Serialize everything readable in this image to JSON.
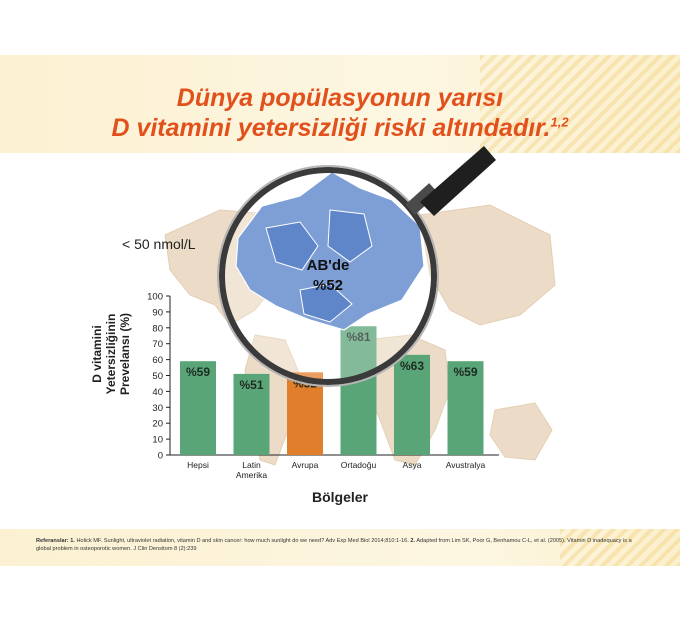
{
  "header": {
    "title_line1": "Dünya popülasyonun yarısı",
    "title_line2": "D vitamini yetersizliği riski altındadır.",
    "title_sup": "1,2"
  },
  "magnifier": {
    "label_line1": "AB'de",
    "label_line2": "%52"
  },
  "colors": {
    "title": "#e2501c",
    "bar_green": "#5aa578",
    "bar_orange": "#e07e2c",
    "map_land": "#ecdcc7",
    "europe": "#7d9fd6"
  },
  "chart_data": {
    "type": "bar",
    "title": "",
    "unit_label": "< 50 nmol/L",
    "ylabel_lines": [
      "D vitamini",
      "Yetersizliğinin",
      "Prevelansı (%)"
    ],
    "xlabel": "Bölgeler",
    "ylim": [
      0,
      100
    ],
    "yticks": [
      0,
      10,
      20,
      30,
      40,
      50,
      60,
      70,
      80,
      90,
      100
    ],
    "categories": [
      [
        "Hepsi"
      ],
      [
        "Latin",
        "Amerika"
      ],
      [
        "Avrupa"
      ],
      [
        "Ortadoğu"
      ],
      [
        "Asya"
      ],
      [
        "Avustralya"
      ]
    ],
    "values": [
      59,
      51,
      52,
      81,
      63,
      59
    ],
    "data_labels": [
      "%59",
      "%51",
      "%52",
      "%81",
      "%63",
      "%59"
    ],
    "highlight_index": 2,
    "grid": false,
    "legend": "none"
  },
  "references": {
    "label": "Referanslar:",
    "ref1_num": "1.",
    "ref1_text": "Holick MF. Sunlight, ultraviolet radiation, vitamin D and skin cancer: how much sunlight do we need? Adv Exp Med Biol 2014;810:1-16.",
    "ref2_num": "2.",
    "ref2_text": "Adapted from Lim SK, Poor G, Benhamou C-L, et al. (2005). Vitamin D inadequacy is a global problem in osteoporotic women. J Clin Densitom 8 (2):239"
  }
}
